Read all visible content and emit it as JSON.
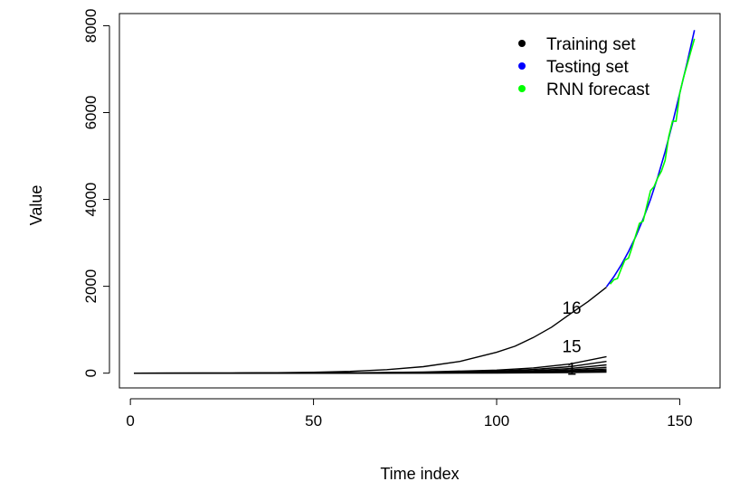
{
  "chart_data": {
    "type": "line",
    "title": "",
    "xlabel": "Time index",
    "ylabel": "Value",
    "xlim": [
      -3,
      161
    ],
    "ylim": [
      -340,
      8280
    ],
    "xticks": [
      0,
      50,
      100,
      150
    ],
    "xtick_labels": [
      "0",
      "50",
      "100",
      "150"
    ],
    "yticks": [
      0,
      2000,
      4000,
      6000,
      8000
    ],
    "ytick_labels": [
      "0",
      "2000",
      "4000",
      "6000",
      "8000"
    ],
    "grid": false,
    "legend": {
      "position": "top-right",
      "entries": [
        {
          "label": "Training set",
          "color": "#000000"
        },
        {
          "label": "Testing set",
          "color": "#0000ff"
        },
        {
          "label": "RNN forecast",
          "color": "#00ff00"
        }
      ]
    },
    "series": [
      {
        "role": "training",
        "color": "#000000",
        "x": [
          1,
          10,
          20,
          30,
          40,
          50,
          60,
          70,
          80,
          90,
          100,
          105,
          110,
          115,
          120,
          125,
          130
        ],
        "y": [
          0,
          1,
          2,
          4,
          9,
          20,
          40,
          80,
          150,
          270,
          480,
          620,
          820,
          1060,
          1360,
          1650,
          1980
        ]
      },
      {
        "role": "training",
        "color": "#000000",
        "x": [
          1,
          20,
          40,
          60,
          80,
          100,
          110,
          120,
          130
        ],
        "y": [
          0,
          1,
          3,
          8,
          25,
          70,
          120,
          210,
          380
        ]
      },
      {
        "role": "training",
        "color": "#000000",
        "x": [
          1,
          20,
          40,
          60,
          80,
          100,
          110,
          120,
          130
        ],
        "y": [
          0,
          1,
          2,
          6,
          18,
          50,
          85,
          150,
          270
        ]
      },
      {
        "role": "training",
        "color": "#000000",
        "x": [
          1,
          20,
          40,
          60,
          80,
          100,
          110,
          120,
          130
        ],
        "y": [
          0,
          0,
          2,
          5,
          13,
          35,
          60,
          105,
          190
        ]
      },
      {
        "role": "training",
        "color": "#000000",
        "x": [
          1,
          20,
          40,
          60,
          80,
          100,
          110,
          120,
          130
        ],
        "y": [
          0,
          0,
          1,
          3,
          9,
          25,
          42,
          75,
          135
        ]
      },
      {
        "role": "training",
        "color": "#000000",
        "x": [
          1,
          20,
          40,
          60,
          80,
          100,
          110,
          120,
          130
        ],
        "y": [
          0,
          0,
          1,
          2,
          6,
          17,
          30,
          52,
          95
        ]
      },
      {
        "role": "training",
        "color": "#000000",
        "x": [
          1,
          20,
          40,
          60,
          80,
          100,
          110,
          120,
          130
        ],
        "y": [
          0,
          0,
          1,
          1,
          4,
          11,
          20,
          35,
          65
        ]
      },
      {
        "role": "training",
        "color": "#000000",
        "x": [
          1,
          20,
          40,
          60,
          80,
          100,
          110,
          120,
          130
        ],
        "y": [
          0,
          0,
          0,
          1,
          2,
          7,
          12,
          22,
          40
        ]
      },
      {
        "role": "training",
        "color": "#000000",
        "x": [
          1,
          20,
          40,
          60,
          80,
          100,
          110,
          120,
          130
        ],
        "y": [
          0,
          0,
          0,
          0,
          1,
          4,
          7,
          13,
          22
        ]
      },
      {
        "role": "testing",
        "color": "#0000ff",
        "x": [
          130,
          132,
          134,
          136,
          138,
          140,
          142,
          144,
          146,
          148,
          150,
          152,
          154
        ],
        "y": [
          1990,
          2220,
          2490,
          2800,
          3150,
          3550,
          4000,
          4520,
          5100,
          5750,
          6450,
          7150,
          7900
        ]
      },
      {
        "role": "forecast",
        "color": "#00ff00",
        "x": [
          131,
          132,
          133,
          134,
          135,
          136,
          137,
          138,
          139,
          140,
          141,
          142,
          143,
          144,
          145,
          146,
          147,
          148,
          149,
          150,
          151,
          152,
          153,
          154
        ],
        "y": [
          2050,
          2150,
          2180,
          2400,
          2600,
          2650,
          2900,
          3180,
          3450,
          3500,
          3850,
          4200,
          4300,
          4500,
          4650,
          4900,
          5450,
          5800,
          5800,
          6450,
          6800,
          7100,
          7400,
          7700
        ]
      }
    ],
    "annotations": [
      {
        "text": "16",
        "x": 120.5,
        "y": 1370
      },
      {
        "text": "15",
        "x": 120.5,
        "y": 480
      },
      {
        "text": "1",
        "x": 120.5,
        "y": -40
      }
    ]
  }
}
